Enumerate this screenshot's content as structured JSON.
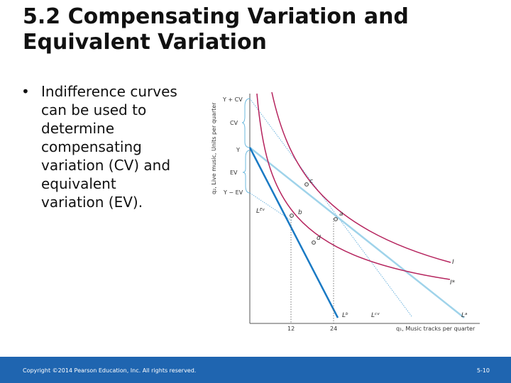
{
  "slide": {
    "title_lines": [
      "5.2 Compensating Variation and",
      "Equivalent Variation"
    ],
    "bullet_lines": [
      "Indifference curves",
      "can be used to",
      "determine",
      "compensating",
      "variation (CV) and",
      "equivalent",
      "variation (EV)."
    ]
  },
  "diagram": {
    "y_axis_label": "q₂, Live music, Units per quarter",
    "x_axis_label": "q₁, Music tracks per quarter",
    "y_ticks": [
      "Y + CV",
      "CV",
      "Y",
      "EV",
      "Y − EV"
    ],
    "x_ticks": [
      "12",
      "24"
    ],
    "points": [
      "c",
      "b",
      "a",
      "d"
    ],
    "curves": [
      "I",
      "I*"
    ],
    "budget_lines": [
      "Lᴱᵛ",
      "Lᵇ",
      "Lᶜᵛ",
      "Lᵃ"
    ],
    "colors": {
      "indifference": "#b5235d",
      "budget_dark": "#1a7ac4",
      "budget_light": "#9fd3ea",
      "accent": "#1f65b0"
    }
  },
  "footer": {
    "copyright": "Copyright ©2014 Pearson Education, Inc. All rights reserved.",
    "page": "5-10"
  }
}
